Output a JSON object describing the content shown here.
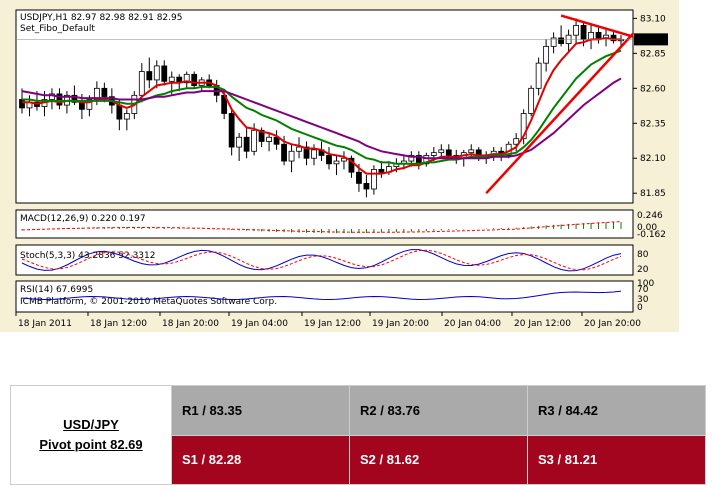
{
  "chart_data": {
    "type": "candlestick",
    "symbol_line": "USDJPY,H1  82.97 82.98 82.91 82.95",
    "template": "Set_Fibo_Default",
    "last_price_label": "82.95",
    "price_ticks": [
      "83.10",
      "82.85",
      "82.60",
      "82.35",
      "82.10",
      "81.85"
    ],
    "price_range": [
      81.78,
      83.16
    ],
    "time_labels": [
      "18 Jan 2011",
      "18 Jan 12:00",
      "18 Jan 20:00",
      "19 Jan 04:00",
      "19 Jan 12:00",
      "19 Jan 20:00",
      "20 Jan 04:00",
      "20 Jan 12:00",
      "20 Jan 20:00"
    ],
    "candles": [
      [
        82.52,
        82.6,
        82.42,
        82.46
      ],
      [
        82.46,
        82.55,
        82.4,
        82.5
      ],
      [
        82.5,
        82.58,
        82.44,
        82.47
      ],
      [
        82.47,
        82.58,
        82.4,
        82.52
      ],
      [
        82.52,
        82.6,
        82.45,
        82.56
      ],
      [
        82.56,
        82.6,
        82.45,
        82.48
      ],
      [
        82.48,
        82.58,
        82.42,
        82.55
      ],
      [
        82.55,
        82.62,
        82.48,
        82.5
      ],
      [
        82.5,
        82.56,
        82.38,
        82.45
      ],
      [
        82.45,
        82.55,
        82.4,
        82.52
      ],
      [
        82.52,
        82.65,
        82.48,
        82.6
      ],
      [
        82.6,
        82.64,
        82.5,
        82.54
      ],
      [
        82.54,
        82.6,
        82.42,
        82.48
      ],
      [
        82.48,
        82.52,
        82.3,
        82.38
      ],
      [
        82.38,
        82.45,
        82.3,
        82.42
      ],
      [
        82.42,
        82.58,
        82.38,
        82.55
      ],
      [
        82.55,
        82.78,
        82.5,
        82.72
      ],
      [
        82.72,
        82.82,
        82.6,
        82.66
      ],
      [
        82.66,
        82.8,
        82.6,
        82.76
      ],
      [
        82.76,
        82.8,
        82.62,
        82.65
      ],
      [
        82.65,
        82.72,
        82.55,
        82.68
      ],
      [
        82.68,
        82.7,
        82.58,
        82.64
      ],
      [
        82.64,
        82.72,
        82.6,
        82.7
      ],
      [
        82.7,
        82.72,
        82.6,
        82.62
      ],
      [
        82.62,
        82.68,
        82.58,
        82.66
      ],
      [
        82.66,
        82.7,
        82.6,
        82.62
      ],
      [
        82.62,
        82.66,
        82.5,
        82.55
      ],
      [
        82.55,
        82.58,
        82.38,
        82.42
      ],
      [
        82.42,
        82.45,
        82.12,
        82.18
      ],
      [
        82.18,
        82.28,
        82.08,
        82.25
      ],
      [
        82.25,
        82.32,
        82.1,
        82.15
      ],
      [
        82.15,
        82.35,
        82.12,
        82.3
      ],
      [
        82.3,
        82.32,
        82.18,
        82.22
      ],
      [
        82.22,
        82.28,
        82.15,
        82.25
      ],
      [
        82.25,
        82.3,
        82.16,
        82.2
      ],
      [
        82.2,
        82.26,
        82.05,
        82.08
      ],
      [
        82.08,
        82.2,
        82.0,
        82.15
      ],
      [
        82.15,
        82.25,
        82.1,
        82.18
      ],
      [
        82.18,
        82.22,
        82.05,
        82.1
      ],
      [
        82.1,
        82.2,
        82.05,
        82.16
      ],
      [
        82.16,
        82.22,
        82.08,
        82.12
      ],
      [
        82.12,
        82.18,
        82.02,
        82.06
      ],
      [
        82.06,
        82.12,
        81.98,
        82.08
      ],
      [
        82.08,
        82.15,
        82.02,
        82.1
      ],
      [
        82.1,
        82.12,
        81.96,
        82.0
      ],
      [
        82.0,
        82.06,
        81.86,
        81.92
      ],
      [
        81.92,
        81.98,
        81.82,
        81.88
      ],
      [
        81.88,
        82.05,
        81.84,
        82.02
      ],
      [
        82.02,
        82.08,
        81.96,
        82.0
      ],
      [
        82.0,
        82.08,
        81.98,
        82.04
      ],
      [
        82.04,
        82.1,
        82.0,
        82.06
      ],
      [
        82.06,
        82.12,
        82.02,
        82.08
      ],
      [
        82.08,
        82.15,
        82.04,
        82.12
      ],
      [
        82.12,
        82.15,
        82.02,
        82.06
      ],
      [
        82.06,
        82.14,
        82.04,
        82.12
      ],
      [
        82.12,
        82.18,
        82.08,
        82.14
      ],
      [
        82.14,
        82.2,
        82.1,
        82.16
      ],
      [
        82.16,
        82.2,
        82.1,
        82.12
      ],
      [
        82.12,
        82.16,
        82.06,
        82.1
      ],
      [
        82.1,
        82.16,
        82.04,
        82.14
      ],
      [
        82.14,
        82.2,
        82.1,
        82.16
      ],
      [
        82.16,
        82.18,
        82.08,
        82.1
      ],
      [
        82.1,
        82.15,
        82.06,
        82.12
      ],
      [
        82.12,
        82.18,
        82.08,
        82.15
      ],
      [
        82.15,
        82.18,
        82.08,
        82.12
      ],
      [
        82.12,
        82.22,
        82.1,
        82.2
      ],
      [
        82.2,
        82.28,
        82.15,
        82.24
      ],
      [
        82.24,
        82.45,
        82.2,
        82.42
      ],
      [
        82.42,
        82.62,
        82.4,
        82.6
      ],
      [
        82.6,
        82.82,
        82.55,
        82.78
      ],
      [
        82.78,
        82.95,
        82.72,
        82.9
      ],
      [
        82.9,
        83.0,
        82.85,
        82.96
      ],
      [
        82.96,
        83.05,
        82.9,
        82.92
      ],
      [
        82.92,
        83.02,
        82.86,
        82.98
      ],
      [
        82.98,
        83.1,
        82.92,
        83.05
      ],
      [
        83.05,
        83.08,
        82.9,
        82.95
      ],
      [
        82.95,
        83.06,
        82.88,
        83.0
      ],
      [
        83.0,
        83.05,
        82.92,
        82.96
      ],
      [
        82.96,
        83.02,
        82.9,
        82.98
      ],
      [
        82.98,
        83.02,
        82.92,
        82.94
      ],
      [
        82.94,
        82.98,
        82.9,
        82.95
      ]
    ],
    "series": [
      {
        "name": "",
        "color": "#e00000",
        "values": [
          82.5,
          82.5,
          82.49,
          82.5,
          82.51,
          82.5,
          82.51,
          82.51,
          82.5,
          82.5,
          82.52,
          82.52,
          82.51,
          82.48,
          82.46,
          82.48,
          82.54,
          82.58,
          82.62,
          82.63,
          82.64,
          82.64,
          82.65,
          82.64,
          82.64,
          82.64,
          82.62,
          82.56,
          82.45,
          82.38,
          82.32,
          82.31,
          82.29,
          82.28,
          82.26,
          82.22,
          82.2,
          82.19,
          82.17,
          82.17,
          82.16,
          82.13,
          82.12,
          82.11,
          82.08,
          82.03,
          81.99,
          81.99,
          81.99,
          82.0,
          82.02,
          82.03,
          82.05,
          82.05,
          82.07,
          82.09,
          82.11,
          82.11,
          82.11,
          82.12,
          82.13,
          82.12,
          82.12,
          82.13,
          82.13,
          82.15,
          82.18,
          82.26,
          82.37,
          82.5,
          82.63,
          82.73,
          82.8,
          82.86,
          82.92,
          82.93,
          82.95,
          82.95,
          82.96,
          82.95,
          82.95
        ]
      },
      {
        "name": "",
        "color": "#008000",
        "values": [
          82.52,
          82.52,
          82.51,
          82.51,
          82.51,
          82.51,
          82.51,
          82.51,
          82.51,
          82.51,
          82.51,
          82.51,
          82.51,
          82.5,
          82.49,
          82.49,
          82.51,
          82.53,
          82.55,
          82.56,
          82.58,
          82.59,
          82.6,
          82.6,
          82.61,
          82.61,
          82.61,
          82.59,
          82.54,
          82.5,
          82.46,
          82.44,
          82.41,
          82.39,
          82.37,
          82.34,
          82.31,
          82.29,
          82.27,
          82.25,
          82.23,
          82.21,
          82.19,
          82.18,
          82.16,
          82.13,
          82.1,
          82.09,
          82.07,
          82.07,
          82.06,
          82.06,
          82.06,
          82.06,
          82.07,
          82.07,
          82.08,
          82.09,
          82.09,
          82.1,
          82.11,
          82.11,
          82.11,
          82.12,
          82.12,
          82.13,
          82.14,
          82.18,
          82.23,
          82.3,
          82.38,
          82.46,
          82.53,
          82.6,
          82.67,
          82.72,
          82.77,
          82.8,
          82.83,
          82.85,
          82.87
        ]
      },
      {
        "name": "",
        "color": "#800080",
        "values": [
          82.58,
          82.57,
          82.56,
          82.55,
          82.55,
          82.54,
          82.54,
          82.54,
          82.53,
          82.53,
          82.53,
          82.53,
          82.53,
          82.52,
          82.52,
          82.52,
          82.52,
          82.53,
          82.54,
          82.54,
          82.55,
          82.56,
          82.57,
          82.57,
          82.58,
          82.58,
          82.58,
          82.58,
          82.56,
          82.54,
          82.52,
          82.5,
          82.48,
          82.46,
          82.44,
          82.42,
          82.4,
          82.38,
          82.36,
          82.34,
          82.32,
          82.3,
          82.28,
          82.26,
          82.24,
          82.22,
          82.19,
          82.17,
          82.15,
          82.14,
          82.13,
          82.12,
          82.11,
          82.11,
          82.1,
          82.1,
          82.1,
          82.1,
          82.1,
          82.1,
          82.1,
          82.1,
          82.1,
          82.11,
          82.11,
          82.11,
          82.12,
          82.14,
          82.16,
          82.2,
          82.24,
          82.28,
          82.33,
          82.38,
          82.43,
          82.48,
          82.52,
          82.56,
          82.6,
          82.64,
          82.67
        ]
      }
    ],
    "macd_label": "MACD(12,26,9) 0.220 0.197",
    "macd_ticks": [
      "0.246",
      "0.00",
      "-0.162"
    ],
    "stoch_label": "Stoch(5,3,3) 43.2836 52.3312",
    "stoch_ticks": [
      "80",
      "20"
    ],
    "rsi_label": "RSI(14) 67.6995",
    "rsi_ticks": [
      "100",
      "70",
      "30",
      "0"
    ],
    "watermark": "ICMB Platform, © 2001-2010 MetaQuotes Software Corp."
  },
  "pivot": {
    "pair": "USD/JPY",
    "pivot_label": "Pivot point 82.69",
    "r1": "R1 / 83.35",
    "r2": "R2 / 83.76",
    "r3": "R3 / 84.42",
    "s1": "S1 / 82.28",
    "s2": "S2 / 81.62",
    "s3": "S3 / 81.21"
  }
}
